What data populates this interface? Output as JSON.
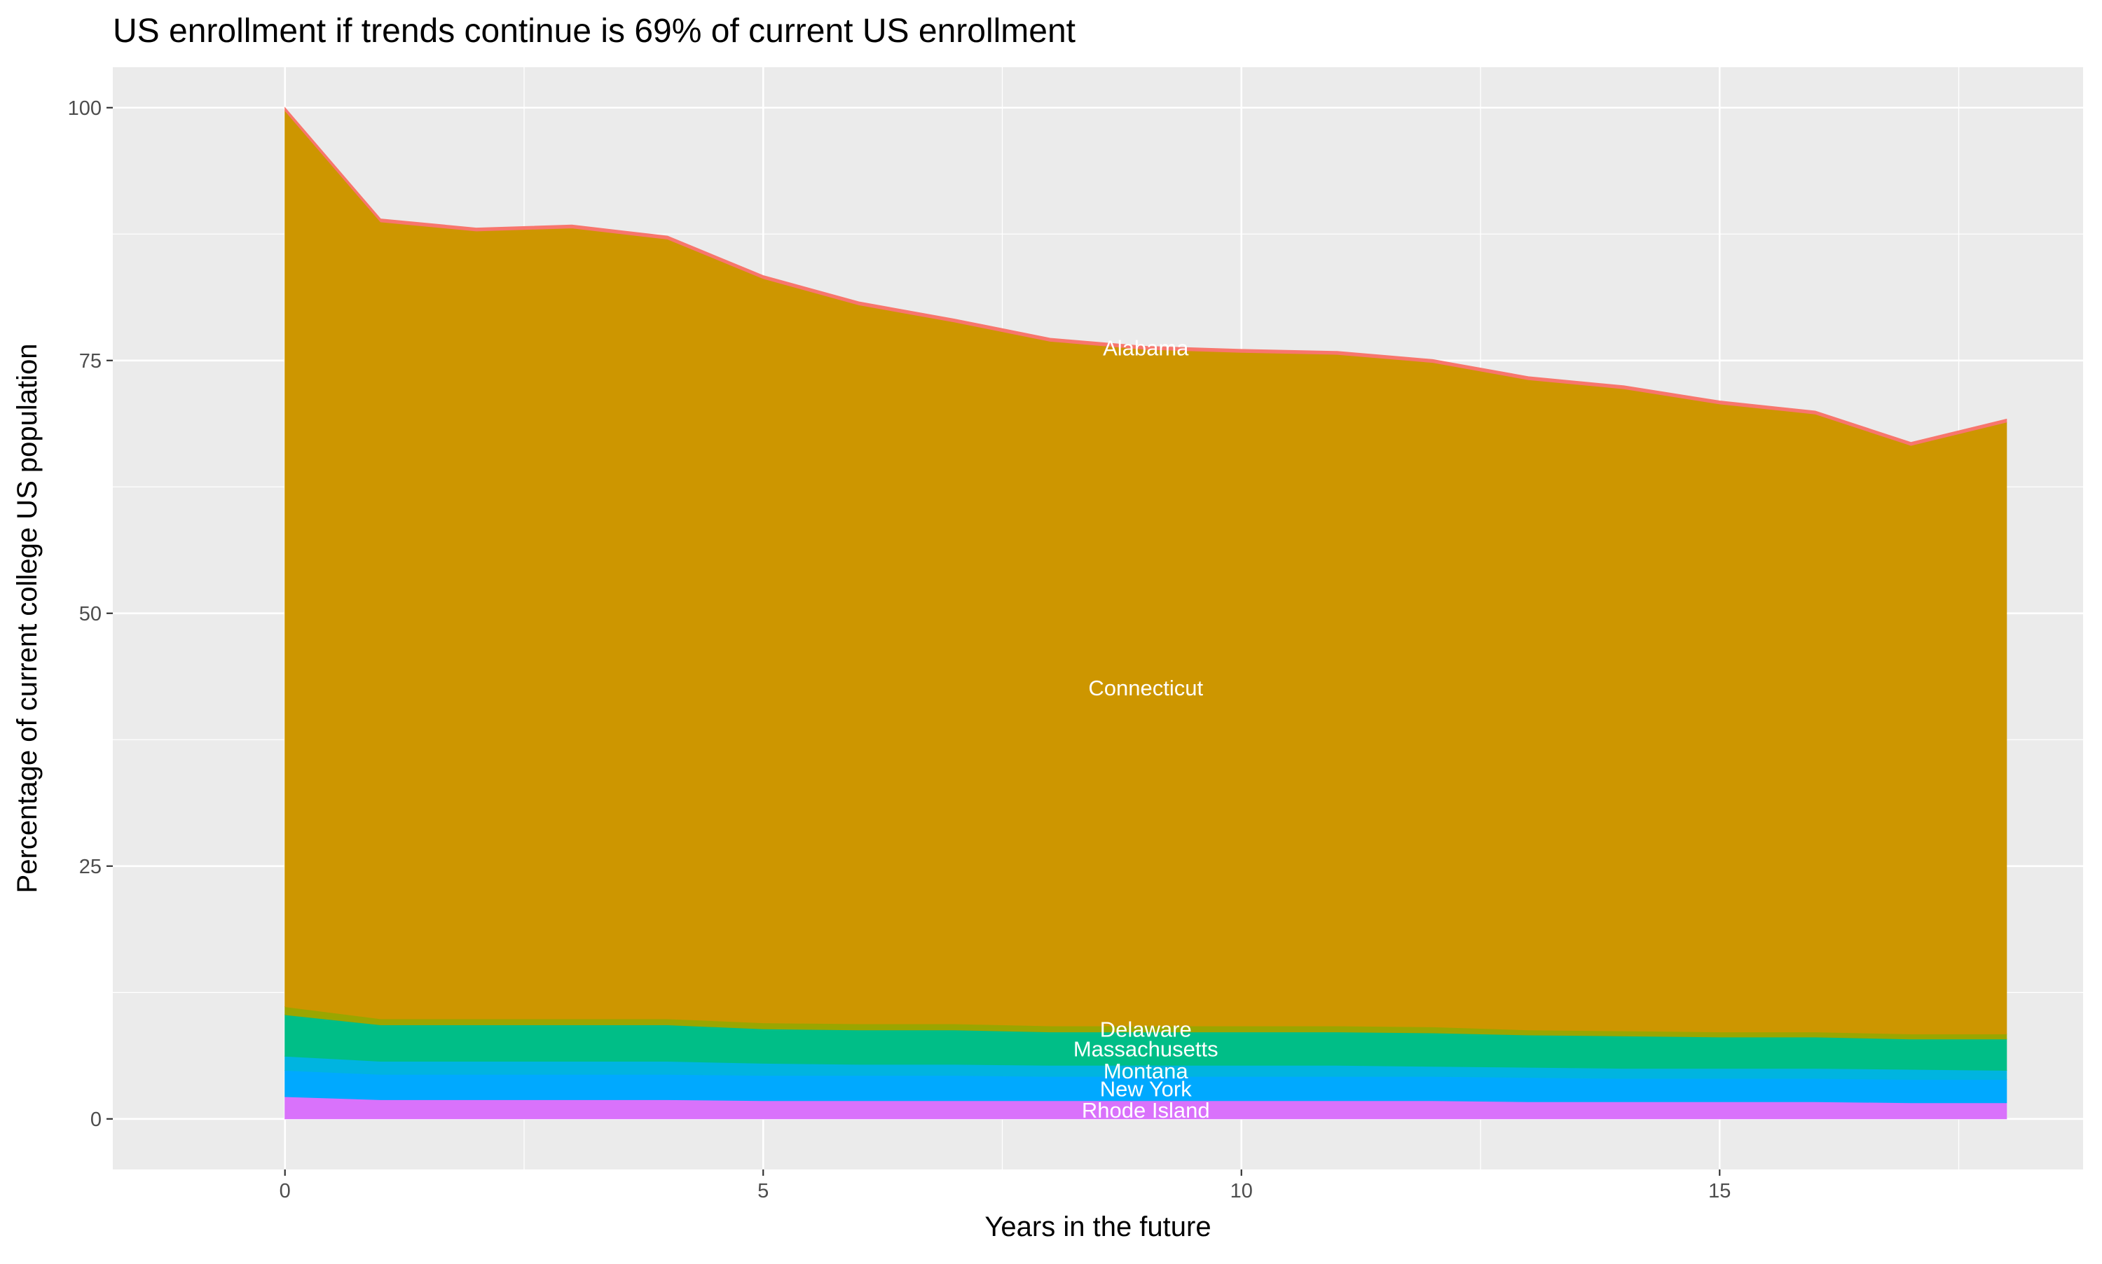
{
  "chart_data": {
    "type": "area",
    "stacked": true,
    "title": "US enrollment if trends continue is 69% of current US enrollment",
    "xlabel": "Years in the future",
    "ylabel": "Percentage of current college US population",
    "xlim": [
      -1.8,
      18.8
    ],
    "ylim": [
      -5,
      104
    ],
    "xticks": [
      0,
      5,
      10,
      15
    ],
    "yticks": [
      0,
      25,
      50,
      75,
      100
    ],
    "grid": true,
    "legend": "none",
    "x": [
      0,
      1,
      2,
      3,
      4,
      5,
      6,
      7,
      8,
      9,
      10,
      11,
      12,
      13,
      14,
      15,
      16,
      17,
      18
    ],
    "label_x": 9,
    "series": [
      {
        "name": "Rhode Island",
        "color": "#D972FB",
        "values": [
          2.2,
          1.9,
          1.9,
          1.9,
          1.9,
          1.8,
          1.8,
          1.8,
          1.8,
          1.8,
          1.8,
          1.8,
          1.8,
          1.7,
          1.7,
          1.7,
          1.7,
          1.6,
          1.6
        ]
      },
      {
        "name": "New York",
        "color": "#00A9FF",
        "values": [
          2.6,
          2.5,
          2.5,
          2.5,
          2.5,
          2.5,
          2.5,
          2.5,
          2.4,
          2.4,
          2.4,
          2.4,
          2.4,
          2.4,
          2.3,
          2.3,
          2.3,
          2.3,
          2.3
        ]
      },
      {
        "name": "Montana",
        "color": "#00B4E0",
        "values": [
          1.4,
          1.3,
          1.3,
          1.3,
          1.3,
          1.2,
          1.1,
          1.1,
          1.1,
          1.1,
          1.1,
          1.1,
          1.0,
          1.0,
          1.0,
          1.0,
          1.0,
          1.0,
          0.9
        ]
      },
      {
        "name": "Massachusetts",
        "color": "#00BE87",
        "values": [
          4.1,
          3.6,
          3.6,
          3.6,
          3.6,
          3.4,
          3.4,
          3.4,
          3.3,
          3.3,
          3.3,
          3.3,
          3.3,
          3.2,
          3.2,
          3.1,
          3.1,
          3.0,
          3.1
        ]
      },
      {
        "name": "Delaware",
        "color": "#9AA600",
        "values": [
          0.8,
          0.6,
          0.6,
          0.6,
          0.6,
          0.6,
          0.6,
          0.6,
          0.6,
          0.6,
          0.6,
          0.6,
          0.6,
          0.5,
          0.5,
          0.5,
          0.5,
          0.5,
          0.5
        ]
      },
      {
        "name": "Connecticut",
        "color": "#CD9600",
        "values": [
          88.6,
          78.8,
          77.9,
          78.2,
          77.1,
          73.6,
          71.1,
          69.4,
          67.7,
          66.9,
          66.6,
          66.4,
          65.7,
          64.3,
          63.5,
          62.1,
          61.1,
          58.2,
          60.5
        ]
      },
      {
        "name": "Alabama",
        "color": "#F8766D",
        "values": [
          0.3,
          0.3,
          0.3,
          0.3,
          0.3,
          0.3,
          0.3,
          0.3,
          0.3,
          0.3,
          0.3,
          0.3,
          0.3,
          0.3,
          0.3,
          0.3,
          0.3,
          0.3,
          0.3
        ]
      }
    ]
  }
}
